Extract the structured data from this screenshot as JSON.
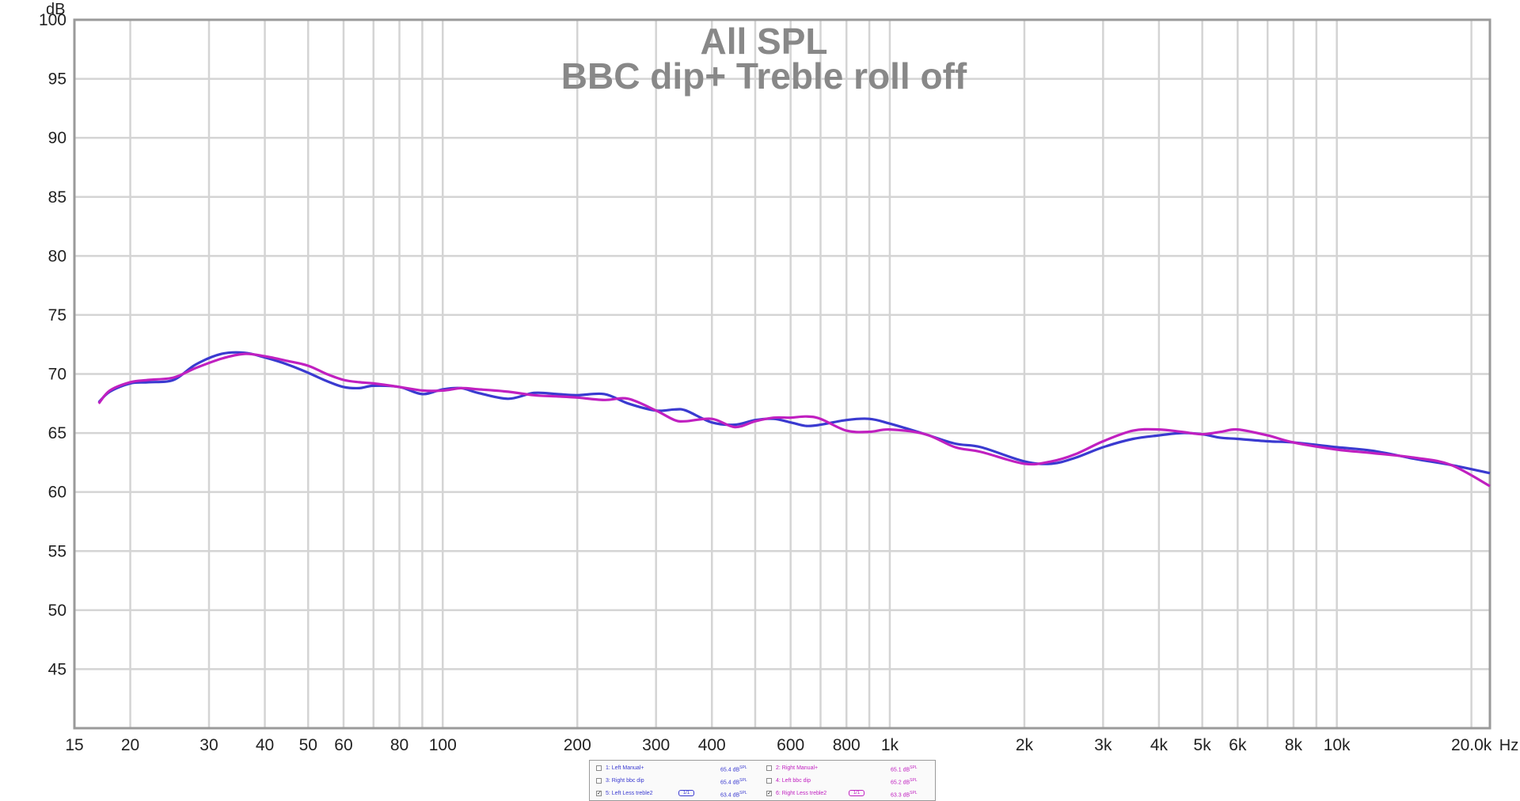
{
  "chart_data": {
    "type": "line",
    "title": "All SPL",
    "subtitle": "BBC dip+ Treble roll off",
    "ylabel": "dB",
    "xlabel": "Hz",
    "x_scale": "log",
    "xlim": [
      15,
      22000
    ],
    "ylim": [
      40,
      100
    ],
    "grid": true,
    "y_ticks": [
      45,
      50,
      55,
      60,
      65,
      70,
      75,
      80,
      85,
      90,
      95,
      100
    ],
    "y_tick_labels": [
      "45",
      "50",
      "55",
      "60",
      "65",
      "70",
      "75",
      "80",
      "85",
      "90",
      "95",
      "100"
    ],
    "x_major_lines": [
      20,
      30,
      40,
      50,
      60,
      70,
      80,
      90,
      100,
      200,
      300,
      400,
      500,
      600,
      700,
      800,
      900,
      1000,
      2000,
      3000,
      4000,
      5000,
      6000,
      7000,
      8000,
      9000,
      10000,
      20000
    ],
    "x_ticks": [
      {
        "value": 15,
        "label": "15"
      },
      {
        "value": 20,
        "label": "20"
      },
      {
        "value": 30,
        "label": "30"
      },
      {
        "value": 40,
        "label": "40"
      },
      {
        "value": 50,
        "label": "50"
      },
      {
        "value": 60,
        "label": "60"
      },
      {
        "value": 80,
        "label": "80"
      },
      {
        "value": 100,
        "label": "100"
      },
      {
        "value": 200,
        "label": "200"
      },
      {
        "value": 300,
        "label": "300"
      },
      {
        "value": 400,
        "label": "400"
      },
      {
        "value": 600,
        "label": "600"
      },
      {
        "value": 800,
        "label": "800"
      },
      {
        "value": 1000,
        "label": "1k"
      },
      {
        "value": 2000,
        "label": "2k"
      },
      {
        "value": 3000,
        "label": "3k"
      },
      {
        "value": 4000,
        "label": "4k"
      },
      {
        "value": 5000,
        "label": "5k"
      },
      {
        "value": 6000,
        "label": "6k"
      },
      {
        "value": 8000,
        "label": "8k"
      },
      {
        "value": 10000,
        "label": "10k"
      },
      {
        "value": 20000,
        "label": "20.0k"
      }
    ],
    "series": [
      {
        "name": "5: Left Less treble2",
        "color": "#3a3ad0",
        "x": [
          17,
          18,
          20,
          22,
          25,
          28,
          32,
          36,
          40,
          45,
          50,
          55,
          60,
          65,
          70,
          80,
          90,
          100,
          110,
          120,
          140,
          160,
          180,
          200,
          230,
          260,
          300,
          330,
          350,
          400,
          450,
          500,
          550,
          600,
          650,
          700,
          800,
          900,
          1000,
          1200,
          1400,
          1600,
          2000,
          2300,
          2600,
          3000,
          3500,
          4000,
          4500,
          5000,
          5500,
          6000,
          7000,
          8000,
          10000,
          12000,
          15000,
          18000,
          22000
        ],
        "y": [
          67.6,
          68.5,
          69.2,
          69.3,
          69.5,
          70.8,
          71.7,
          71.8,
          71.4,
          70.8,
          70.1,
          69.4,
          68.9,
          68.8,
          69.0,
          68.9,
          68.3,
          68.7,
          68.8,
          68.4,
          67.9,
          68.4,
          68.3,
          68.2,
          68.3,
          67.5,
          66.9,
          67.0,
          66.9,
          65.9,
          65.7,
          66.1,
          66.2,
          65.9,
          65.6,
          65.7,
          66.1,
          66.2,
          65.8,
          64.9,
          64.1,
          63.8,
          62.6,
          62.4,
          62.9,
          63.8,
          64.5,
          64.8,
          65.0,
          64.9,
          64.6,
          64.5,
          64.3,
          64.2,
          63.8,
          63.5,
          62.8,
          62.3,
          61.6
        ]
      },
      {
        "name": "6: Right Less treble2",
        "color": "#c020c0",
        "x": [
          17,
          18,
          20,
          22,
          25,
          28,
          32,
          36,
          40,
          45,
          50,
          55,
          60,
          65,
          70,
          80,
          90,
          100,
          110,
          120,
          140,
          160,
          180,
          200,
          230,
          260,
          300,
          330,
          350,
          400,
          450,
          500,
          550,
          600,
          650,
          700,
          800,
          900,
          1000,
          1200,
          1400,
          1600,
          2000,
          2300,
          2600,
          3000,
          3500,
          4000,
          4500,
          5000,
          5500,
          6000,
          7000,
          8000,
          10000,
          12000,
          15000,
          18000,
          22000
        ],
        "y": [
          67.5,
          68.6,
          69.3,
          69.5,
          69.7,
          70.5,
          71.3,
          71.7,
          71.5,
          71.1,
          70.7,
          70.0,
          69.5,
          69.3,
          69.2,
          68.9,
          68.6,
          68.6,
          68.8,
          68.7,
          68.5,
          68.2,
          68.1,
          68.0,
          67.8,
          67.9,
          66.9,
          66.1,
          66.0,
          66.2,
          65.5,
          66.0,
          66.3,
          66.3,
          66.4,
          66.2,
          65.2,
          65.1,
          65.3,
          64.9,
          63.8,
          63.4,
          62.4,
          62.6,
          63.2,
          64.3,
          65.2,
          65.3,
          65.1,
          64.9,
          65.1,
          65.3,
          64.8,
          64.2,
          63.6,
          63.3,
          62.9,
          62.3,
          60.5
        ]
      }
    ]
  },
  "legend": {
    "items": [
      {
        "label": "1: Left Manual+",
        "value": "65.4 dB",
        "unit": "SPL",
        "checked": false,
        "check_mark": "",
        "color": "#3a3ad0",
        "symbol": ""
      },
      {
        "label": "2: Right Manual+",
        "value": "65.1 dB",
        "unit": "SPL",
        "checked": false,
        "check_mark": "",
        "color": "#c020c0",
        "symbol": ""
      },
      {
        "label": "3: Right bbc dip",
        "value": "65.4 dB",
        "unit": "SPL",
        "checked": false,
        "check_mark": "",
        "color": "#3a3ad0",
        "symbol": ""
      },
      {
        "label": "4: Left bbc dip",
        "value": "65.2 dB",
        "unit": "SPL",
        "checked": false,
        "check_mark": "",
        "color": "#c020c0",
        "symbol": ""
      },
      {
        "label": "5: Left Less treble2",
        "value": "63.4 dB",
        "unit": "SPL",
        "checked": true,
        "check_mark": "✓",
        "color": "#3a3ad0",
        "symbol": "1/1"
      },
      {
        "label": "6: Right Less treble2",
        "value": "63.3 dB",
        "unit": "SPL",
        "checked": true,
        "check_mark": "✓",
        "color": "#c020c0",
        "symbol": "1/1"
      }
    ]
  }
}
